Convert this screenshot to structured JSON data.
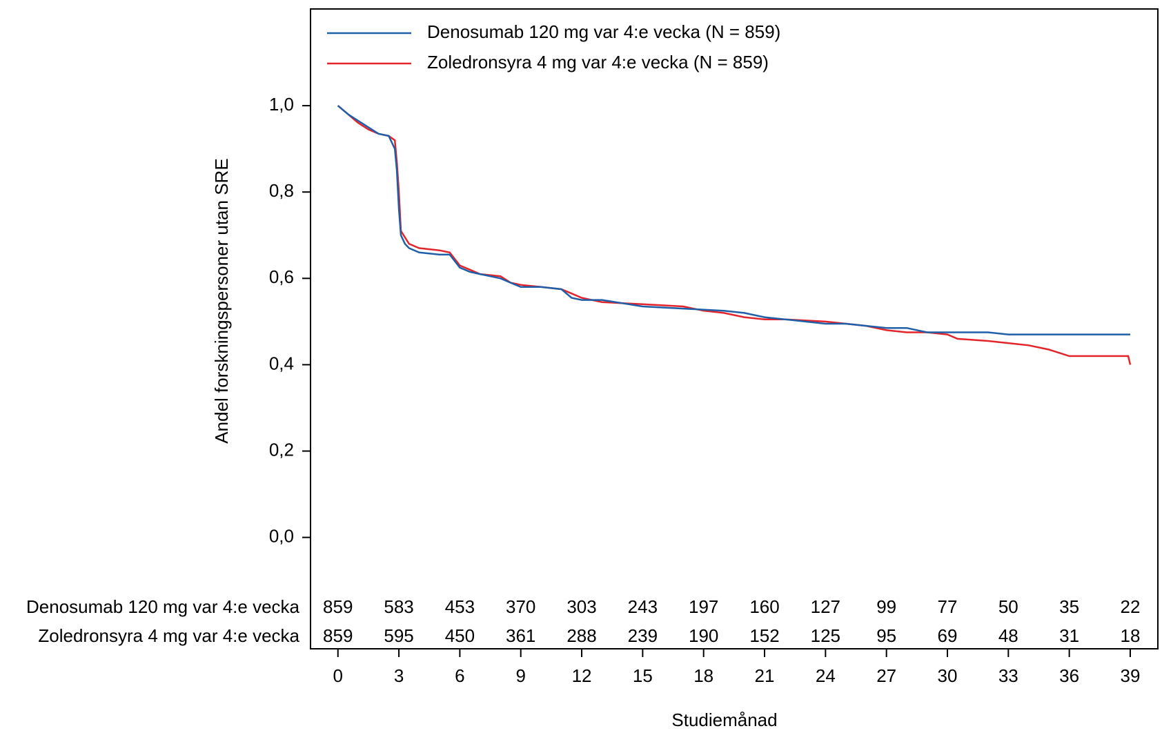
{
  "chart_data": {
    "type": "line",
    "y_label": "Andel forskningspersoner utan SRE",
    "x_label": "Studiemånad",
    "xlim": [
      -1.35,
      40.36
    ],
    "ylim": [
      -0.258,
      1.224
    ],
    "xticks": [
      0,
      3,
      6,
      9,
      12,
      15,
      18,
      21,
      24,
      27,
      30,
      33,
      36,
      39
    ],
    "yticks": [
      {
        "value": 0,
        "label": "0,0"
      },
      {
        "value": 0.2,
        "label": "0,2"
      },
      {
        "value": 0.4,
        "label": "0,4"
      },
      {
        "value": 0.6,
        "label": "0,6"
      },
      {
        "value": 0.8,
        "label": "0,8"
      },
      {
        "value": 1.0,
        "label": "1,0"
      }
    ],
    "legend": "top-left",
    "series": [
      {
        "name": "Denosumab 120 mg var 4:e vecka (N = 859)",
        "color": "#1f5fa8",
        "x": [
          0,
          0.5,
          1,
          1.5,
          2,
          2.5,
          2.8,
          2.9,
          3.0,
          3.1,
          3.3,
          3.5,
          4,
          5,
          5.5,
          6,
          6.5,
          7,
          8,
          8.5,
          9,
          10,
          11,
          11.5,
          12,
          13,
          15,
          17,
          19,
          20,
          21,
          22,
          24,
          25,
          26,
          27,
          28,
          29,
          30,
          31,
          32,
          33,
          35,
          37,
          39
        ],
        "values": [
          1.0,
          0.98,
          0.965,
          0.95,
          0.935,
          0.93,
          0.9,
          0.85,
          0.76,
          0.7,
          0.68,
          0.67,
          0.66,
          0.655,
          0.655,
          0.625,
          0.615,
          0.61,
          0.6,
          0.59,
          0.58,
          0.58,
          0.575,
          0.555,
          0.55,
          0.55,
          0.535,
          0.53,
          0.525,
          0.52,
          0.51,
          0.505,
          0.495,
          0.495,
          0.49,
          0.485,
          0.485,
          0.475,
          0.475,
          0.475,
          0.475,
          0.47,
          0.47,
          0.47,
          0.47
        ]
      },
      {
        "name": "Zoledronsyra 4 mg var 4:e vecka (N = 859)",
        "color": "#e3242b",
        "x": [
          0,
          0.5,
          1,
          1.5,
          2,
          2.5,
          2.8,
          2.9,
          3.0,
          3.1,
          3.3,
          3.5,
          4,
          5,
          5.5,
          6,
          6.5,
          7,
          8,
          8.5,
          9,
          10,
          11,
          11.5,
          12,
          13,
          15,
          17,
          18,
          19,
          20,
          21,
          22,
          24,
          25,
          26,
          27,
          28,
          29,
          30,
          30.5,
          32,
          33,
          34,
          35,
          36,
          38,
          38.9,
          39
        ],
        "values": [
          1.0,
          0.98,
          0.96,
          0.945,
          0.935,
          0.93,
          0.92,
          0.87,
          0.8,
          0.71,
          0.695,
          0.68,
          0.67,
          0.665,
          0.66,
          0.63,
          0.62,
          0.61,
          0.605,
          0.59,
          0.585,
          0.58,
          0.575,
          0.565,
          0.555,
          0.545,
          0.54,
          0.535,
          0.525,
          0.52,
          0.51,
          0.505,
          0.505,
          0.5,
          0.495,
          0.49,
          0.48,
          0.475,
          0.475,
          0.47,
          0.46,
          0.455,
          0.45,
          0.445,
          0.435,
          0.42,
          0.42,
          0.42,
          0.4
        ]
      }
    ],
    "risk_table": {
      "rows": [
        {
          "name": "Denosumab 120 mg var 4:e vecka",
          "values": [
            859,
            583,
            453,
            370,
            303,
            243,
            197,
            160,
            127,
            99,
            77,
            50,
            35,
            22
          ]
        },
        {
          "name": "Zoledronsyra 4 mg var 4:e vecka",
          "values": [
            859,
            595,
            450,
            361,
            288,
            239,
            190,
            152,
            125,
            95,
            69,
            48,
            31,
            18
          ]
        }
      ]
    }
  }
}
